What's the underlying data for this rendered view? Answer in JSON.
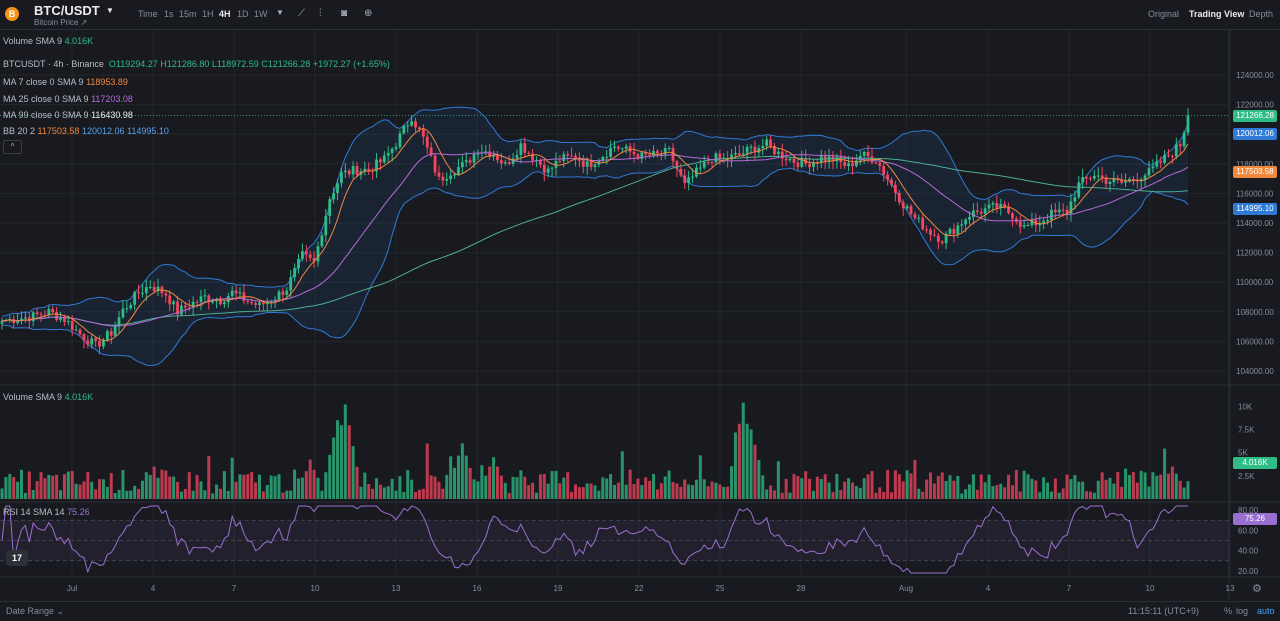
{
  "header": {
    "coin_icon": "B",
    "pair": "BTC/USDT",
    "subtitle": "Bitcoin Price ↗",
    "timeframes": [
      "Time",
      "1s",
      "15m",
      "1H",
      "4H",
      "1D",
      "1W"
    ],
    "active_timeframe": "4H",
    "views": [
      "Original",
      "Trading View",
      "Depth"
    ],
    "active_view": "Trading View"
  },
  "volume_header": {
    "label": "Volume SMA 9",
    "value": "4.016K"
  },
  "legend": {
    "symbol_line": "BTCUSDT · 4h · Binance",
    "o": "O119294.27",
    "h": "H121286.80",
    "l": "L118972.59",
    "c": "C121266.28",
    "change": "+1972.27 (+1.65%)",
    "ma7_label": "MA 7 close 0 SMA 9",
    "ma7_value": "118953.89",
    "ma25_label": "MA 25 close 0 SMA 9",
    "ma25_value": "117203.08",
    "ma99_label": "MA 99 close 0 SMA 9",
    "ma99_value": "116430.98",
    "bb_label": "BB 20 2",
    "bb_mid": "117503.58",
    "bb_up": "120012.06",
    "bb_low": "114995.10",
    "collapse_icon": "^"
  },
  "price_axis": {
    "ticks": [
      "124000.00",
      "122000.00",
      "120000.00",
      "118000.00",
      "116000.00",
      "114000.00",
      "112000.00",
      "110000.00",
      "108000.00",
      "106000.00",
      "104000.00"
    ],
    "labels": {
      "last": "121266.28",
      "bb_up": "120012.06",
      "bb_mid": "117503.58",
      "bb_low": "114995.10"
    }
  },
  "volume_pane": {
    "label": "Volume SMA 9",
    "value": "4.016K",
    "ticks": [
      "10K",
      "7.5K",
      "5K",
      "2.5K"
    ],
    "current_label": "4.016K"
  },
  "rsi_pane": {
    "label": "RSI 14 SMA 14",
    "value": "75.26",
    "ticks": [
      "80.00",
      "60.00",
      "40.00",
      "20.00"
    ],
    "current_label": "75.26"
  },
  "time_axis": [
    "Jul",
    "4",
    "7",
    "10",
    "13",
    "16",
    "19",
    "22",
    "25",
    "28",
    "Aug",
    "4",
    "7",
    "10",
    "13"
  ],
  "footer": {
    "date_range": "Date Range ⌄",
    "clock": "11:15:11 (UTC+9)",
    "options": [
      "%",
      "log",
      "auto"
    ],
    "logo": "17"
  },
  "colors": {
    "up": "#2ebd85",
    "down": "#f6465d",
    "ma7": "#f0883e",
    "ma25": "#b46bd6",
    "ma99": "#4caf91",
    "bb": "#2f7ad6",
    "rsi": "#9b6fd1"
  },
  "chart_data": {
    "type": "candlestick",
    "keypoints": [
      [
        0,
        107400
      ],
      [
        8,
        107700
      ],
      [
        12,
        108000
      ],
      [
        16,
        107500
      ],
      [
        20,
        106500
      ],
      [
        24,
        105700
      ],
      [
        28,
        106600
      ],
      [
        31,
        108100
      ],
      [
        35,
        109300
      ],
      [
        38,
        109800
      ],
      [
        42,
        109200
      ],
      [
        45,
        108000
      ],
      [
        49,
        108600
      ],
      [
        52,
        109000
      ],
      [
        56,
        108800
      ],
      [
        59,
        109300
      ],
      [
        63,
        108700
      ],
      [
        66,
        108400
      ],
      [
        70,
        109000
      ],
      [
        73,
        109600
      ],
      [
        77,
        111800
      ],
      [
        80,
        111300
      ],
      [
        84,
        115700
      ],
      [
        87,
        117300
      ],
      [
        91,
        117600
      ],
      [
        94,
        117600
      ],
      [
        98,
        118300
      ],
      [
        101,
        119400
      ],
      [
        105,
        121200
      ],
      [
        108,
        119700
      ],
      [
        112,
        116900
      ],
      [
        115,
        117500
      ],
      [
        119,
        118000
      ],
      [
        122,
        119000
      ],
      [
        126,
        118700
      ],
      [
        129,
        117900
      ],
      [
        133,
        119300
      ],
      [
        136,
        118500
      ],
      [
        140,
        117500
      ],
      [
        143,
        118300
      ],
      [
        147,
        118500
      ],
      [
        150,
        117900
      ],
      [
        154,
        118600
      ],
      [
        157,
        119200
      ],
      [
        161,
        118800
      ],
      [
        164,
        118500
      ],
      [
        168,
        118600
      ],
      [
        171,
        118800
      ],
      [
        175,
        116500
      ],
      [
        178,
        117400
      ],
      [
        182,
        118400
      ],
      [
        185,
        118300
      ],
      [
        189,
        118600
      ],
      [
        192,
        119000
      ],
      [
        196,
        119300
      ],
      [
        199,
        118700
      ],
      [
        203,
        118200
      ],
      [
        206,
        118000
      ],
      [
        210,
        118400
      ],
      [
        213,
        118300
      ],
      [
        217,
        117800
      ],
      [
        220,
        118600
      ],
      [
        224,
        118300
      ],
      [
        227,
        117000
      ],
      [
        231,
        115300
      ],
      [
        234,
        114300
      ],
      [
        238,
        113400
      ],
      [
        241,
        112900
      ],
      [
        245,
        113800
      ],
      [
        248,
        114600
      ],
      [
        252,
        114900
      ],
      [
        255,
        115100
      ],
      [
        259,
        114600
      ],
      [
        262,
        113700
      ],
      [
        266,
        114100
      ],
      [
        269,
        114600
      ],
      [
        273,
        114800
      ],
      [
        276,
        116600
      ],
      [
        280,
        117300
      ],
      [
        283,
        116900
      ],
      [
        287,
        116700
      ],
      [
        290,
        117000
      ],
      [
        294,
        117400
      ],
      [
        297,
        118100
      ],
      [
        300,
        118800
      ],
      [
        302,
        119300
      ],
      [
        304,
        121266
      ]
    ],
    "volume_peaks": [
      [
        0,
        0.8
      ],
      [
        40,
        1.2
      ],
      [
        86,
        8.5
      ],
      [
        88,
        10.2
      ],
      [
        118,
        6.0
      ],
      [
        126,
        4.5
      ],
      [
        190,
        10.4
      ],
      [
        192,
        7.5
      ],
      [
        300,
        3.5
      ]
    ],
    "rsi_range": [
      20,
      85
    ]
  }
}
